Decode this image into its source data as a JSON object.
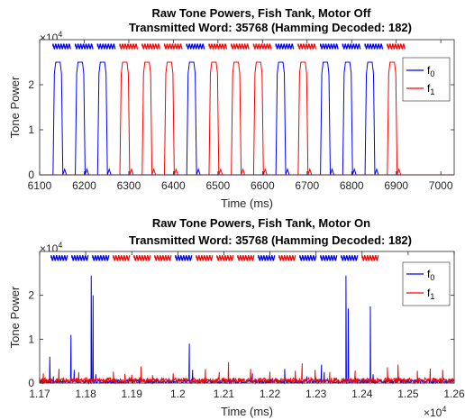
{
  "chart_data": [
    {
      "type": "line",
      "title_line1": "Raw Tone Powers, Fish Tank, Motor Off",
      "title_line2": "Transmitted Word: 35768 (Hamming Decoded:  182)",
      "xlabel": "Time (ms)",
      "ylabel": "Tone Power",
      "xlim": [
        6100,
        7030
      ],
      "ylim": [
        0,
        30000
      ],
      "xticks": [
        "6100",
        "6200",
        "6300",
        "6400",
        "6500",
        "6600",
        "6700",
        "6800",
        "6900",
        "7000"
      ],
      "xtick_values": [
        6100,
        6200,
        6300,
        6400,
        6500,
        6600,
        6700,
        6800,
        6900,
        7000
      ],
      "yticks": [
        "0",
        "1",
        "2"
      ],
      "ytick_values": [
        0,
        10000,
        20000
      ],
      "y_exponent": "×10",
      "y_exponent_power": "4",
      "legend_position": "top-right",
      "colors": {
        "f0": "#0000ff",
        "f1": "#ff0000"
      },
      "series": [
        {
          "name": "f",
          "sub": "0",
          "color": "#0000ff",
          "pulses": [
            {
              "start": 6130,
              "end": 6152,
              "peak": 25000
            },
            {
              "start": 6180,
              "end": 6202,
              "peak": 25000
            },
            {
              "start": 6230,
              "end": 6252,
              "peak": 25000
            },
            {
              "start": 6430,
              "end": 6452,
              "peak": 25000
            },
            {
              "start": 6630,
              "end": 6652,
              "peak": 25000
            },
            {
              "start": 6730,
              "end": 6752,
              "peak": 25000
            },
            {
              "start": 6780,
              "end": 6802,
              "peak": 25000
            },
            {
              "start": 6830,
              "end": 6852,
              "peak": 25000
            }
          ]
        },
        {
          "name": "f",
          "sub": "1",
          "color": "#ff0000",
          "pulses": [
            {
              "start": 6280,
              "end": 6302,
              "peak": 25000
            },
            {
              "start": 6330,
              "end": 6352,
              "peak": 25000
            },
            {
              "start": 6380,
              "end": 6402,
              "peak": 25000
            },
            {
              "start": 6480,
              "end": 6502,
              "peak": 25000
            },
            {
              "start": 6530,
              "end": 6552,
              "peak": 25000
            },
            {
              "start": 6580,
              "end": 6602,
              "peak": 25000
            },
            {
              "start": 6680,
              "end": 6702,
              "peak": 25000
            },
            {
              "start": 6880,
              "end": 6902,
              "peak": 25000
            }
          ]
        }
      ],
      "bit_markers": [
        "0",
        "0",
        "0",
        "1",
        "1",
        "1",
        "0",
        "1",
        "1",
        "1",
        "0",
        "1",
        "0",
        "0",
        "0",
        "1"
      ],
      "bit_marker_starts": [
        6130,
        6180,
        6230,
        6280,
        6330,
        6380,
        6430,
        6480,
        6530,
        6580,
        6630,
        6680,
        6730,
        6780,
        6830,
        6880
      ],
      "bit_marker_y": 28500
    },
    {
      "type": "line",
      "title_line1": "Raw Tone Powers, Fish Tank, Motor On",
      "title_line2": "Transmitted Word: 35768 (Hamming Decoded:  182)",
      "xlabel": "Time (ms)",
      "ylabel": "Tone Power",
      "xlim": [
        11700,
        12600
      ],
      "ylim": [
        0,
        30000
      ],
      "xticks": [
        "1.17",
        "1.18",
        "1.19",
        "1.2",
        "1.21",
        "1.22",
        "1.23",
        "1.24",
        "1.25",
        "1.26"
      ],
      "xtick_values": [
        11700,
        11800,
        11900,
        12000,
        12100,
        12200,
        12300,
        12400,
        12500,
        12600
      ],
      "yticks": [
        "0",
        "1",
        "2"
      ],
      "ytick_values": [
        0,
        10000,
        20000
      ],
      "y_exponent": "×10",
      "y_exponent_power": "4",
      "x_exponent": "×10",
      "x_exponent_power": "4",
      "legend_position": "top-right",
      "colors": {
        "f0": "#0000ff",
        "f1": "#ff0000"
      },
      "series": [
        {
          "name": "f",
          "sub": "0",
          "color": "#0000ff",
          "spikes": [
            [
              11700,
              1200
            ],
            [
              11715,
              900
            ],
            [
              11722,
              6000
            ],
            [
              11730,
              1500
            ],
            [
              11768,
              11000
            ],
            [
              11775,
              3000
            ],
            [
              11812,
              24500
            ],
            [
              11816,
              20000
            ],
            [
              11822,
              2000
            ],
            [
              11950,
              800
            ],
            [
              12025,
              9000
            ],
            [
              12032,
              3000
            ],
            [
              12122,
              1200
            ],
            [
              12162,
              2200
            ],
            [
              12232,
              3200
            ],
            [
              12280,
              1500
            ],
            [
              12312,
              4200
            ],
            [
              12318,
              2500
            ],
            [
              12365,
              24500
            ],
            [
              12370,
              17000
            ],
            [
              12418,
              17500
            ],
            [
              12424,
              2000
            ],
            [
              12440,
              800
            ],
            [
              12480,
              1300
            ],
            [
              12560,
              1000
            ]
          ],
          "baseline": 800
        },
        {
          "name": "f",
          "sub": "1",
          "color": "#ff0000",
          "spikes": [
            [
              11708,
              2200
            ],
            [
              11742,
              3200
            ],
            [
              11785,
              2500
            ],
            [
              11860,
              2600
            ],
            [
              11885,
              2100
            ],
            [
              11900,
              1900
            ],
            [
              11920,
              3800
            ],
            [
              11945,
              1800
            ],
            [
              11990,
              2200
            ],
            [
              12060,
              3200
            ],
            [
              12090,
              2500
            ],
            [
              12110,
              4700
            ],
            [
              12158,
              3200
            ],
            [
              12200,
              2600
            ],
            [
              12255,
              2800
            ],
            [
              12270,
              4500
            ],
            [
              12298,
              3000
            ],
            [
              12330,
              2500
            ],
            [
              12385,
              2800
            ],
            [
              12455,
              3600
            ],
            [
              12478,
              4200
            ],
            [
              12520,
              2800
            ],
            [
              12548,
              3300
            ],
            [
              12575,
              3000
            ]
          ],
          "baseline": 1200
        }
      ],
      "bit_markers": [
        "0",
        "0",
        "0",
        "1",
        "1",
        "1",
        "0",
        "1",
        "1",
        "1",
        "0",
        "1",
        "0",
        "0",
        "0",
        "1"
      ],
      "bit_marker_starts": [
        11725,
        11770,
        11815,
        11860,
        11905,
        11950,
        11995,
        12040,
        12085,
        12130,
        12175,
        12220,
        12265,
        12310,
        12355,
        12400
      ],
      "bit_marker_y": 28500
    }
  ]
}
